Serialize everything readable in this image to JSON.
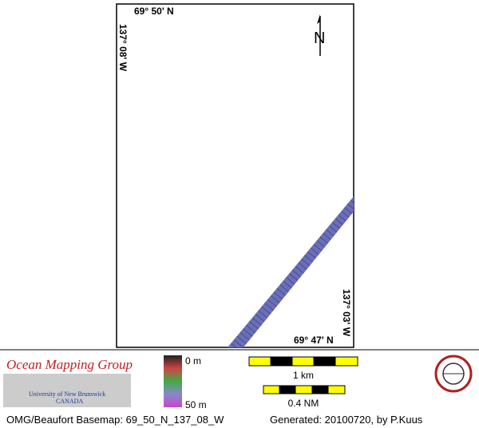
{
  "map": {
    "labels": {
      "top_lat": "69° 50' N",
      "left_lon": "137° 08' W",
      "right_lon": "137° 03' W",
      "bottom_lat": "69° 47' N",
      "north": "N"
    }
  },
  "legend": {
    "org": "Ocean Mapping Group",
    "university": "University of New Brunswick",
    "country": "CANADA",
    "depth_min": "0 m",
    "depth_max": "50 m",
    "scale_km": "1 km",
    "scale_nm": "0.4 NM"
  },
  "footer": {
    "basemap": "OMG/Beaufort Basemap: 69_50_N_137_08_W",
    "generated": "Generated: 20100720, by P.Kuus"
  }
}
